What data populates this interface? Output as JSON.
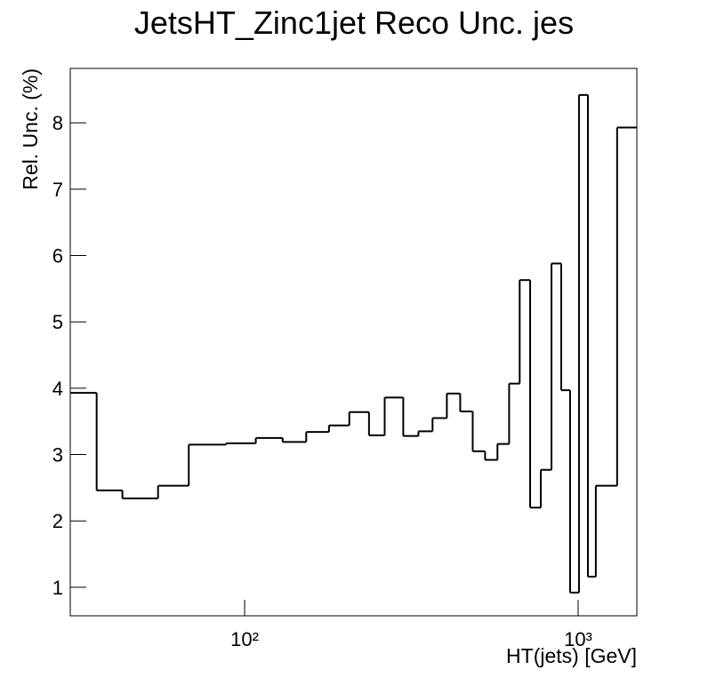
{
  "chart_data": {
    "type": "histogram",
    "title": "JetsHT_Zinc1jet Reco Unc. jes",
    "xlabel": "HT(jets) [GeV]",
    "ylabel": "Rel. Unc. (%)",
    "xscale": "log",
    "color": "#000000",
    "bins": [
      30,
      36,
      43,
      55,
      68,
      88,
      108,
      130,
      153,
      179,
      206,
      236,
      263,
      299,
      332,
      366,
      404,
      443,
      483,
      526,
      573,
      621,
      668,
      718,
      773,
      832,
      890,
      946,
      1006,
      1070,
      1130,
      1309,
      1500
    ],
    "values": [
      3.93,
      2.46,
      2.34,
      2.53,
      3.15,
      3.17,
      3.25,
      3.19,
      3.34,
      3.44,
      3.64,
      3.29,
      3.86,
      3.28,
      3.35,
      3.55,
      3.92,
      3.65,
      3.05,
      2.92,
      3.16,
      4.07,
      5.63,
      2.2,
      2.77,
      5.88,
      3.97,
      0.92,
      8.42,
      1.16,
      2.53,
      7.93
    ],
    "xlim": [
      30,
      1500
    ],
    "ylim": [
      0.57,
      8.82
    ],
    "xticks": [
      {
        "value": 100,
        "label": "10²"
      },
      {
        "value": 1000,
        "label": "10³"
      }
    ],
    "yticks": [
      1,
      2,
      3,
      4,
      5,
      6,
      7,
      8
    ]
  }
}
